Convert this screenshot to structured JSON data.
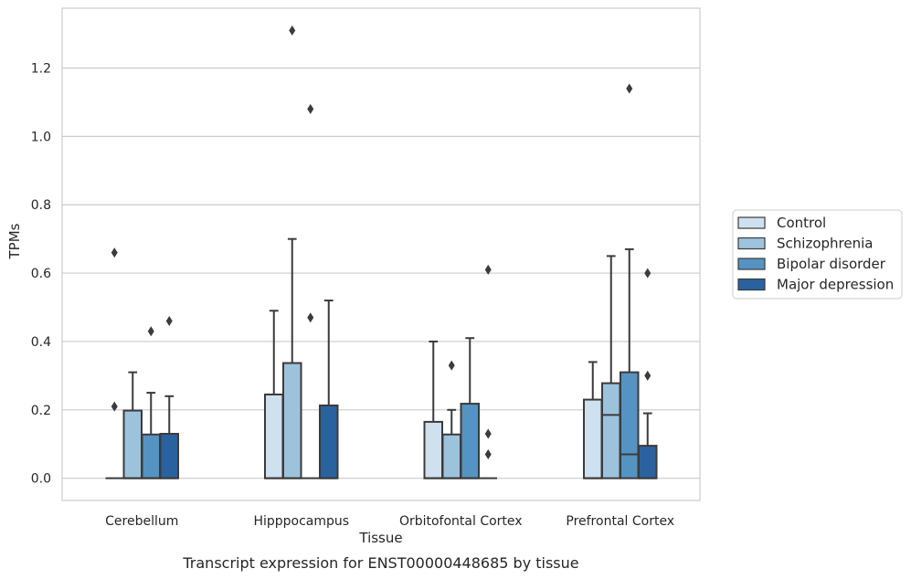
{
  "chart_data": {
    "type": "boxplot",
    "caption": "Transcript expression for ENST00000448685 by tissue",
    "xlabel": "Tissue",
    "ylabel": "TPMs",
    "ylim": [
      -0.065,
      1.375
    ],
    "yticks": [
      "0.0",
      "0.2",
      "0.4",
      "0.6",
      "0.8",
      "1.0",
      "1.2"
    ],
    "grid": "horizontal",
    "legend_position": "right",
    "categories": [
      "Cerebellum",
      "Hipppocampus",
      "Orbitofontal Cortex",
      "Prefrontal Cortex"
    ],
    "series": [
      {
        "name": "Control",
        "color": "#cfe0ef",
        "boxes": [
          {
            "min": 0,
            "q1": 0,
            "median": 0,
            "q3": 0,
            "max": 0,
            "outliers": [
              0.21,
              0.66
            ]
          },
          {
            "min": 0,
            "q1": 0,
            "median": 0,
            "q3": 0.245,
            "max": 0.49,
            "outliers": []
          },
          {
            "min": 0,
            "q1": 0,
            "median": 0,
            "q3": 0.165,
            "max": 0.4,
            "outliers": []
          },
          {
            "min": 0,
            "q1": 0,
            "median": 0,
            "q3": 0.23,
            "max": 0.34,
            "outliers": []
          }
        ]
      },
      {
        "name": "Schizophrenia",
        "color": "#9dc3dc",
        "boxes": [
          {
            "min": 0,
            "q1": 0,
            "median": 0,
            "q3": 0.198,
            "max": 0.31,
            "outliers": []
          },
          {
            "min": 0,
            "q1": 0,
            "median": 0,
            "q3": 0.337,
            "max": 0.7,
            "outliers": [
              1.31
            ]
          },
          {
            "min": 0,
            "q1": 0,
            "median": 0,
            "q3": 0.128,
            "max": 0.2,
            "outliers": [
              0.33
            ]
          },
          {
            "min": 0,
            "q1": 0,
            "median": 0.185,
            "q3": 0.278,
            "max": 0.65,
            "outliers": []
          }
        ]
      },
      {
        "name": "Bipolar disorder",
        "color": "#5593c2",
        "boxes": [
          {
            "min": 0,
            "q1": 0,
            "median": 0,
            "q3": 0.128,
            "max": 0.25,
            "outliers": [
              0.43
            ]
          },
          {
            "min": 0,
            "q1": 0,
            "median": 0,
            "q3": 0,
            "max": 0,
            "outliers": [
              0.47,
              1.08
            ]
          },
          {
            "min": 0,
            "q1": 0,
            "median": 0,
            "q3": 0.218,
            "max": 0.41,
            "outliers": []
          },
          {
            "min": 0,
            "q1": 0,
            "median": 0.07,
            "q3": 0.31,
            "max": 0.67,
            "outliers": [
              1.14
            ]
          }
        ]
      },
      {
        "name": "Major depression",
        "color": "#2a62a0",
        "boxes": [
          {
            "min": 0,
            "q1": 0,
            "median": 0,
            "q3": 0.13,
            "max": 0.24,
            "outliers": [
              0.46
            ]
          },
          {
            "min": 0,
            "q1": 0,
            "median": 0,
            "q3": 0.213,
            "max": 0.52,
            "outliers": []
          },
          {
            "min": 0,
            "q1": 0,
            "median": 0,
            "q3": 0,
            "max": 0,
            "outliers": [
              0.07,
              0.13,
              0.61
            ]
          },
          {
            "min": 0,
            "q1": 0,
            "median": 0,
            "q3": 0.095,
            "max": 0.19,
            "outliers": [
              0.3,
              0.6
            ]
          }
        ]
      }
    ]
  }
}
